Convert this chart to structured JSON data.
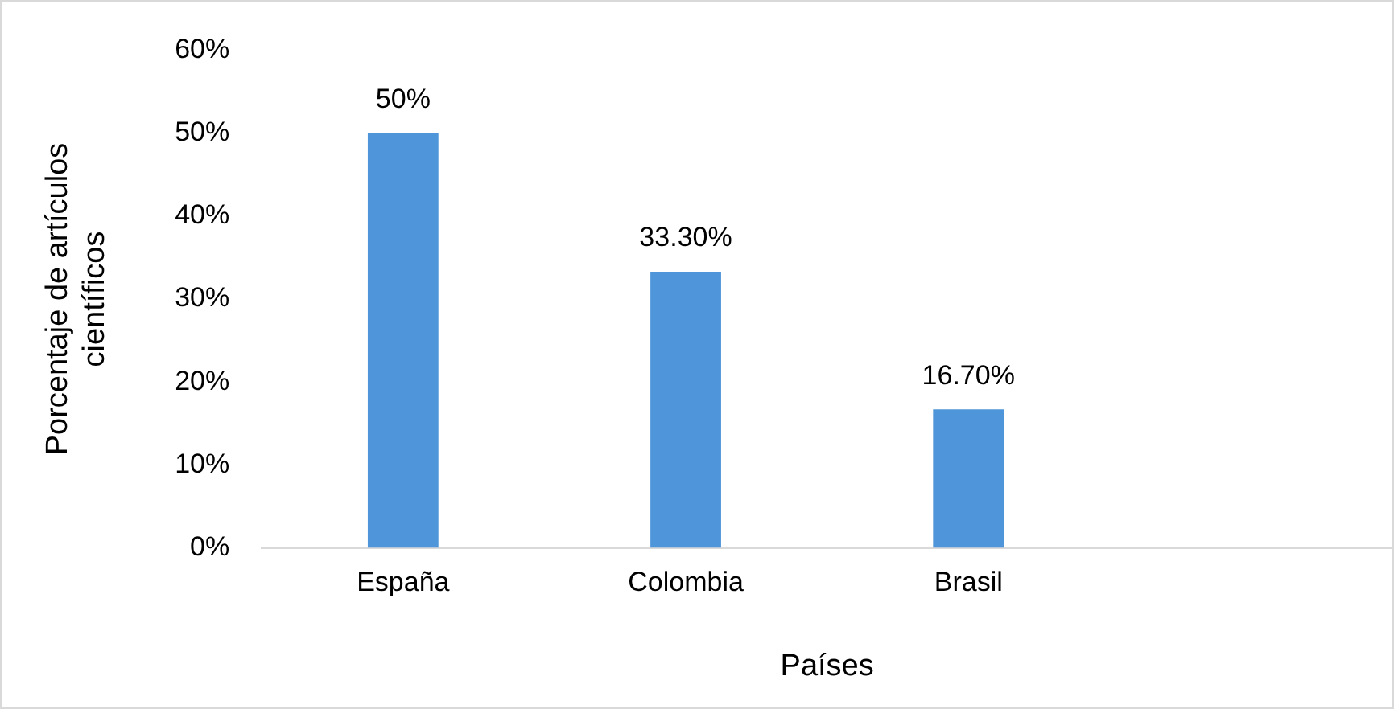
{
  "chart_data": {
    "type": "bar",
    "xlabel": "Países",
    "ylabel": "Porcentaje de artículos\ncientíficos",
    "categories": [
      "España",
      "Colombia",
      "Brasil",
      null
    ],
    "values": [
      50,
      33.3,
      16.7,
      null
    ],
    "value_labels": [
      "50%",
      "33.30%",
      "16.70%",
      null
    ],
    "color": "#4e95d9",
    "ylim": [
      0,
      60
    ],
    "yticks": [
      {
        "value": 0,
        "label": "0%"
      },
      {
        "value": 10,
        "label": "10%"
      },
      {
        "value": 20,
        "label": "20%"
      },
      {
        "value": 30,
        "label": "30%"
      },
      {
        "value": 40,
        "label": "40%"
      },
      {
        "value": 50,
        "label": "50%"
      },
      {
        "value": 60,
        "label": "60%"
      }
    ],
    "grid": false,
    "legend": false
  }
}
